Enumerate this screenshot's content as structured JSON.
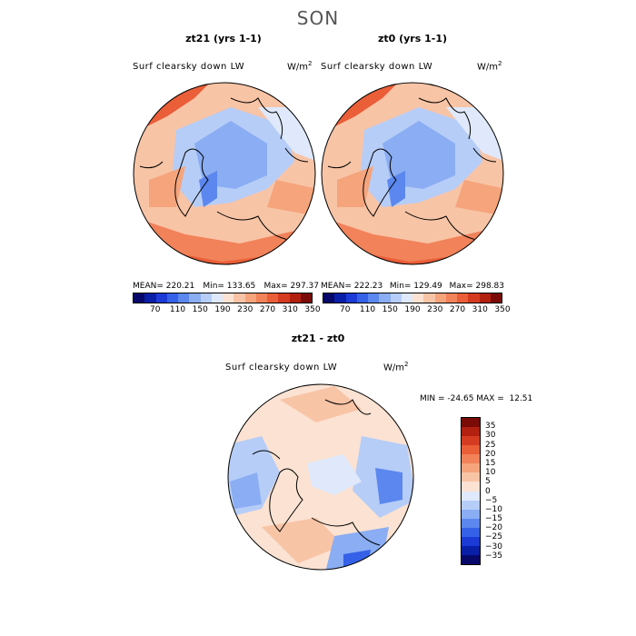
{
  "figure": {
    "season": "SON",
    "panels": [
      {
        "title": "zt21 (yrs 1-1)",
        "variable": "Surf clearsky down LW",
        "units": "W/m",
        "units_exp": "2",
        "stats": {
          "mean": "MEAN= 220.21",
          "min": "Min= 133.65",
          "max": "Max= 297.37"
        }
      },
      {
        "title": "zt0 (yrs 1-1)",
        "variable": "Surf clearsky down LW",
        "units": "W/m",
        "units_exp": "2",
        "stats": {
          "mean": "MEAN= 222.23",
          "min": "Min= 129.49",
          "max": "Max= 298.83"
        }
      }
    ],
    "horizontal_colorbar": {
      "ticks": [
        "70",
        "110",
        "150",
        "190",
        "230",
        "270",
        "310",
        "350"
      ],
      "colors": [
        "#08086b",
        "#0a1fa8",
        "#1c3ad6",
        "#3561e8",
        "#5b87ee",
        "#8aadf3",
        "#b6cdf7",
        "#dfe9fb",
        "#fbe2d2",
        "#f8c4a6",
        "#f5a47c",
        "#f1825a",
        "#ea5e38",
        "#d53b21",
        "#b2200f",
        "#7a0b06"
      ]
    },
    "diff_panel": {
      "title": "zt21 - zt0",
      "variable": "Surf clearsky down LW",
      "units": "W/m",
      "units_exp": "2",
      "stats": "MIN = -24.65 MAX =  12.51"
    },
    "vertical_colorbar": {
      "labels": [
        "35",
        "30",
        "25",
        "20",
        "15",
        "10",
        "5",
        "0",
        "−5",
        "−10",
        "−15",
        "−20",
        "−25",
        "−30",
        "−35"
      ],
      "colors": [
        "#7a0b06",
        "#b2200f",
        "#d53b21",
        "#ea5e38",
        "#f1825a",
        "#f5a47c",
        "#f8c4a6",
        "#fbe2d2",
        "#dfe9fb",
        "#b6cdf7",
        "#8aadf3",
        "#5b87ee",
        "#3561e8",
        "#1c3ad6",
        "#0a1fa8",
        "#08086b"
      ]
    }
  }
}
